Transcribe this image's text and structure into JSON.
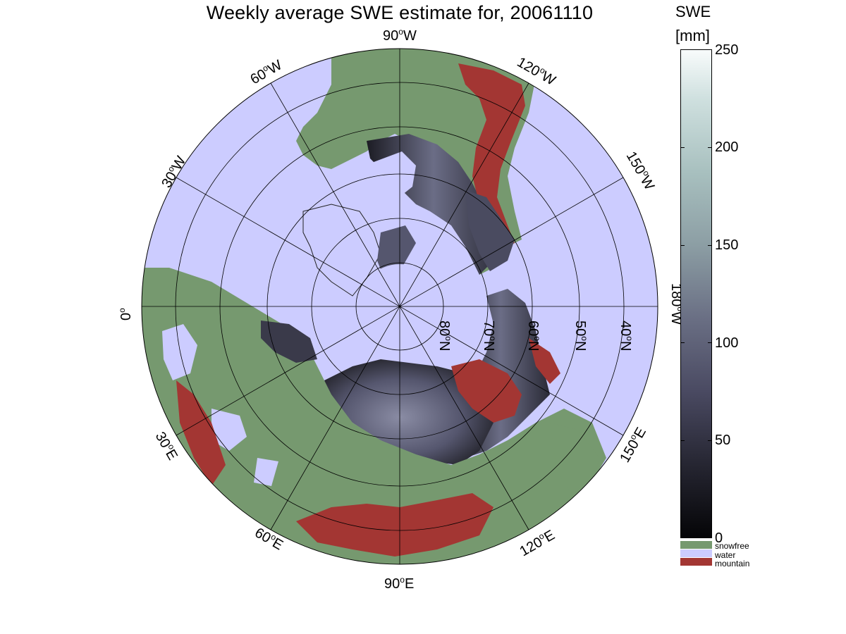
{
  "title": "Weekly average SWE estimate for, 20061110",
  "colorbar": {
    "title_line1": "SWE",
    "title_line2": "[mm]",
    "ticks": [
      "0",
      "50",
      "100",
      "150",
      "200",
      "250"
    ],
    "range": [
      0,
      250
    ]
  },
  "legend": [
    {
      "label": "snowfree",
      "color": "#76996f"
    },
    {
      "label": "water",
      "color": "#ccccff"
    },
    {
      "label": "mountain",
      "color": "#a33633"
    }
  ],
  "longitude_labels": {
    "w90": {
      "deg": "90",
      "dir": "W"
    },
    "w120": {
      "deg": "120",
      "dir": "W"
    },
    "w60": {
      "deg": "60",
      "dir": "W"
    },
    "w150": {
      "deg": "150",
      "dir": "W"
    },
    "w30": {
      "deg": "30",
      "dir": "W"
    },
    "w180": {
      "deg": "180",
      "dir": "W"
    },
    "zero": {
      "deg": "0",
      "dir": ""
    },
    "e150": {
      "deg": "150",
      "dir": "E"
    },
    "e30": {
      "deg": "30",
      "dir": "E"
    },
    "e120": {
      "deg": "120",
      "dir": "E"
    },
    "e60": {
      "deg": "60",
      "dir": "E"
    },
    "e90": {
      "deg": "90",
      "dir": "E"
    }
  },
  "latitude_labels": {
    "n80": {
      "deg": "80",
      "dir": "N"
    },
    "n70": {
      "deg": "70",
      "dir": "N"
    },
    "n60": {
      "deg": "60",
      "dir": "N"
    },
    "n50": {
      "deg": "50",
      "dir": "N"
    },
    "n40": {
      "deg": "40",
      "dir": "N"
    }
  },
  "colors": {
    "water": "#ccccff",
    "snowfree": "#76996f",
    "mountain": "#a33633",
    "snow_low": "#1e1e26",
    "snow_mid": "#4c4c64",
    "snow_high": "#8a8ea6"
  }
}
